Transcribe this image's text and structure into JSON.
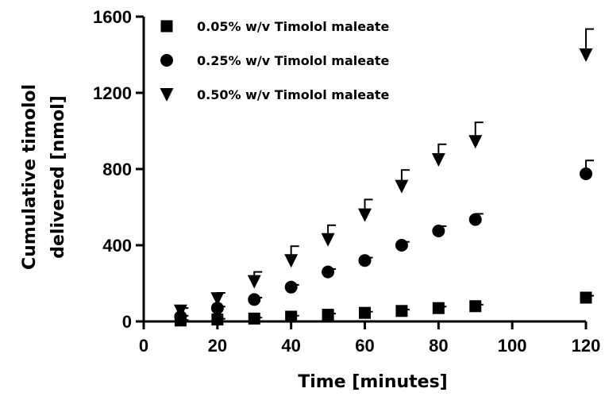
{
  "chart_data": {
    "type": "scatter",
    "xlabel": "Time [minutes]",
    "ylabel_lines": [
      "Cumulative timolol",
      "delivered [nmol]"
    ],
    "xlim": [
      0,
      120
    ],
    "ylim": [
      0,
      1600
    ],
    "xticks": [
      0,
      20,
      40,
      60,
      80,
      100,
      120
    ],
    "yticks": [
      0,
      400,
      800,
      1200,
      1600
    ],
    "grid": false,
    "legend_position": "top-left",
    "series": [
      {
        "name": "0.05% w/v Timolol maleate",
        "marker": "square",
        "x": [
          10,
          20,
          30,
          40,
          50,
          60,
          70,
          80,
          90,
          120
        ],
        "y": [
          5,
          10,
          15,
          25,
          35,
          45,
          55,
          70,
          80,
          125
        ],
        "err_plus": [
          3,
          4,
          5,
          5,
          6,
          6,
          7,
          8,
          8,
          10
        ]
      },
      {
        "name": "0.25% w/v Timolol maleate",
        "marker": "circle",
        "x": [
          10,
          20,
          30,
          40,
          50,
          60,
          70,
          80,
          90,
          120
        ],
        "y": [
          25,
          70,
          115,
          180,
          260,
          320,
          400,
          475,
          535,
          775
        ],
        "err_plus": [
          5,
          8,
          10,
          12,
          15,
          15,
          18,
          25,
          30,
          70
        ]
      },
      {
        "name": "0.50% w/v Timolol maleate",
        "marker": "triangle-down",
        "x": [
          10,
          20,
          30,
          40,
          50,
          60,
          70,
          80,
          90,
          120
        ],
        "y": [
          55,
          120,
          210,
          320,
          430,
          560,
          710,
          850,
          945,
          1400
        ],
        "err_plus": [
          15,
          30,
          50,
          75,
          75,
          80,
          85,
          80,
          100,
          135
        ]
      }
    ]
  }
}
